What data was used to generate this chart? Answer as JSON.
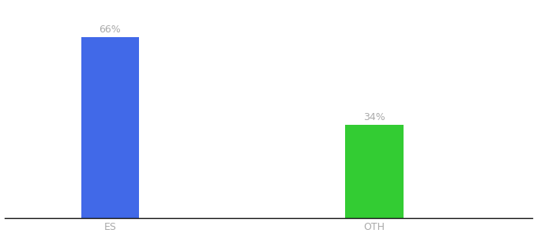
{
  "categories": [
    "ES",
    "OTH"
  ],
  "values": [
    66,
    34
  ],
  "bar_colors": [
    "#4169e8",
    "#33cc33"
  ],
  "label_texts": [
    "66%",
    "34%"
  ],
  "label_color": "#aaaaaa",
  "xlabel_color": "#aaaaaa",
  "background_color": "#ffffff",
  "ylim": [
    0,
    78
  ],
  "bar_width": 0.22,
  "label_fontsize": 9,
  "tick_fontsize": 9,
  "spine_color": "#111111"
}
